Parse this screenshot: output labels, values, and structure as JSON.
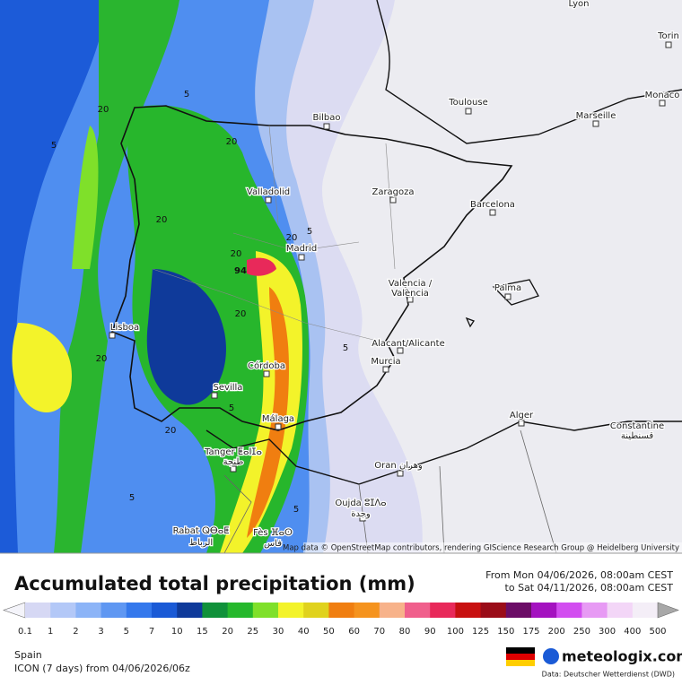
{
  "map": {
    "cities": [
      "Lyon",
      "Torin",
      "Monaco",
      "Bilbao",
      "Toulouse",
      "Marseille",
      "Valladolid",
      "Zaragoza",
      "Barcelona",
      "Madrid",
      "Valencia /",
      "València",
      "Palma",
      "Lisboa",
      "Alacant/Alicante",
      "Murcia",
      "Córdoba",
      "Sevilla",
      "Málaga",
      "Alger",
      "Constantine",
      "قسنطينة",
      "Tanger ⵟⴰⵏⵊⴰ",
      "طنجة",
      "Oran وهران",
      "Oujda ⵓⵊⴷⴰ",
      "وجدة",
      "Rabat ⵕⴱⴰⵟ",
      "الرباط",
      "Fès ⴼⴰⵙ",
      "فاس"
    ],
    "contour_labels": [
      "5",
      "20",
      "5",
      "20",
      "20",
      "20",
      "20",
      "5",
      "5",
      "20",
      "20",
      "5",
      "20",
      "5",
      "5",
      "94"
    ],
    "attribution": "Map data © OpenStreetMap contributors, rendering GIScience Research Group @ Heidelberg University"
  },
  "legend": {
    "title": "Accumulated total precipitation (mm)",
    "period_from": "From Mon 04/06/2026, 08:00am CEST",
    "period_to": "to Sat 04/11/2026, 08:00am CEST",
    "labels": [
      "0.1",
      "1",
      "2",
      "3",
      "5",
      "7",
      "10",
      "15",
      "20",
      "25",
      "30",
      "40",
      "50",
      "60",
      "70",
      "80",
      "90",
      "100",
      "125",
      "150",
      "175",
      "200",
      "250",
      "300",
      "400",
      "500"
    ],
    "colors": [
      "#d6d8f4",
      "#b3c8f7",
      "#8cb4f7",
      "#5f97f2",
      "#3478ec",
      "#1a5ad6",
      "#0f3a9a",
      "#10913a",
      "#26b82c",
      "#7fe02a",
      "#f3f32a",
      "#e0d21d",
      "#f07e10",
      "#f5931e",
      "#f7b28a",
      "#f05f8c",
      "#e8295a",
      "#c81010",
      "#9a0c18",
      "#6b0c66",
      "#a412c0",
      "#d24ef0",
      "#e79af4",
      "#f3d6f7",
      "#f4eef7"
    ]
  },
  "footer": {
    "region": "Spain",
    "model": "ICON (7 days)  from  04/06/2026/06z",
    "brand": "meteologix.com",
    "source": "Data: Deutscher Wetterdienst (DWD)"
  }
}
